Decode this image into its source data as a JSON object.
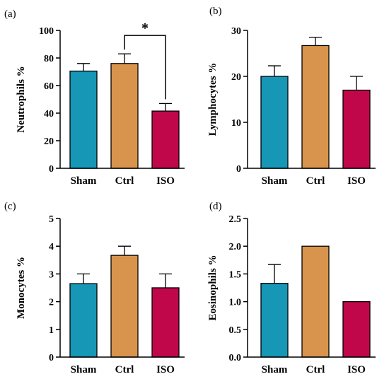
{
  "colors": {
    "Sham": "#1597b5",
    "Ctrl": "#d8944c",
    "ISO": "#c0074a",
    "axis": "#000000"
  },
  "chart_data": [
    {
      "type": "bar",
      "panel": "(a)",
      "ylabel": "Neutrophils %",
      "categories": [
        "Sham",
        "Ctrl",
        "ISO"
      ],
      "values": [
        70.5,
        76,
        41.5
      ],
      "errors": [
        5.5,
        7,
        5.5
      ],
      "ylim": [
        0,
        100
      ],
      "yticks": [
        0,
        20,
        40,
        60,
        80,
        100
      ],
      "significance": [
        {
          "from": "Ctrl",
          "to": "ISO",
          "label": "*"
        }
      ]
    },
    {
      "type": "bar",
      "panel": "(b)",
      "ylabel": "Lymphocytes %",
      "categories": [
        "Sham",
        "Ctrl",
        "ISO"
      ],
      "values": [
        20,
        26.7,
        17
      ],
      "errors": [
        2.3,
        1.8,
        3
      ],
      "ylim": [
        0,
        30
      ],
      "yticks": [
        0,
        10,
        20,
        30
      ],
      "significance": []
    },
    {
      "type": "bar",
      "panel": "(c)",
      "ylabel": "Monocytes %",
      "categories": [
        "Sham",
        "Ctrl",
        "ISO"
      ],
      "values": [
        2.65,
        3.67,
        2.5
      ],
      "errors": [
        0.35,
        0.33,
        0.5
      ],
      "ylim": [
        0,
        5
      ],
      "yticks": [
        0,
        1,
        2,
        3,
        4,
        5
      ],
      "significance": []
    },
    {
      "type": "bar",
      "panel": "(d)",
      "ylabel": "Eosinophils %",
      "categories": [
        "Sham",
        "Ctrl",
        "ISO"
      ],
      "values": [
        1.33,
        2.0,
        1.0
      ],
      "errors": [
        0.34,
        0,
        0
      ],
      "ylim": [
        0,
        2.5
      ],
      "yticks": [
        "0.0",
        "0.5",
        "1.0",
        "1.5",
        "2.0",
        "2.5"
      ],
      "significance": []
    }
  ]
}
